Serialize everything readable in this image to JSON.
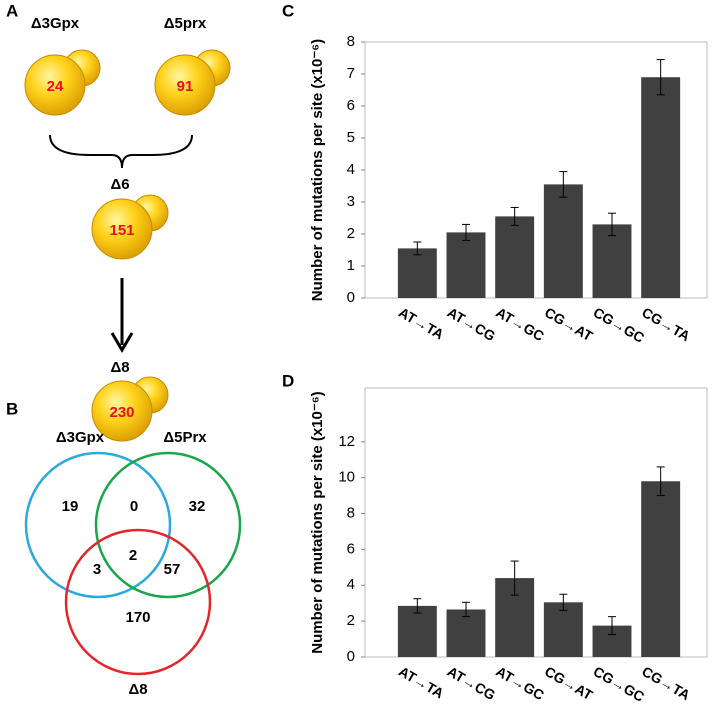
{
  "panel_labels": [
    "A",
    "B",
    "C",
    "D"
  ],
  "diagram_a": {
    "cells": [
      {
        "label": "Δ3Gpx",
        "count": "24"
      },
      {
        "label": "Δ5prx",
        "count": "91"
      },
      {
        "label": "Δ6",
        "count": "151"
      },
      {
        "label": "Δ8",
        "count": "230"
      }
    ]
  },
  "venn_b": {
    "sets": [
      "Δ3Gpx",
      "Δ5Prx",
      "Δ8"
    ],
    "regions": {
      "gpx_only": "19",
      "gpx_prx": "0",
      "prx_only": "32",
      "gpx_d8": "3",
      "all": "2",
      "prx_d8": "57",
      "d8_only": "170"
    }
  },
  "chart_data": [
    {
      "type": "bar",
      "ylabel": "Number of mutations per site (x10⁻⁶)",
      "categories": [
        "AT→TA",
        "AT→CG",
        "AT→GC",
        "CG→AT",
        "CG→GC",
        "CG→TA"
      ],
      "values": [
        1.55,
        2.05,
        2.55,
        3.55,
        2.3,
        6.9
      ],
      "errors": [
        0.2,
        0.25,
        0.28,
        0.4,
        0.35,
        0.55
      ],
      "color": "#404040",
      "ylim": [
        0,
        8
      ],
      "yticks": [
        0,
        1,
        2,
        3,
        4,
        5,
        6,
        7,
        8
      ]
    },
    {
      "type": "bar",
      "ylabel": "Number of mutations per site (x10⁻⁶)",
      "categories": [
        "AT→TA",
        "AT→CG",
        "AT→GC",
        "CG→AT",
        "CG→GC",
        "CG→TA"
      ],
      "values": [
        2.85,
        2.65,
        4.4,
        3.05,
        1.75,
        9.8
      ],
      "errors": [
        0.4,
        0.4,
        0.95,
        0.45,
        0.5,
        0.8
      ],
      "color": "#404040",
      "ylim": [
        0,
        15
      ],
      "yticks": [
        0,
        2,
        4,
        6,
        8,
        10,
        12
      ]
    }
  ]
}
